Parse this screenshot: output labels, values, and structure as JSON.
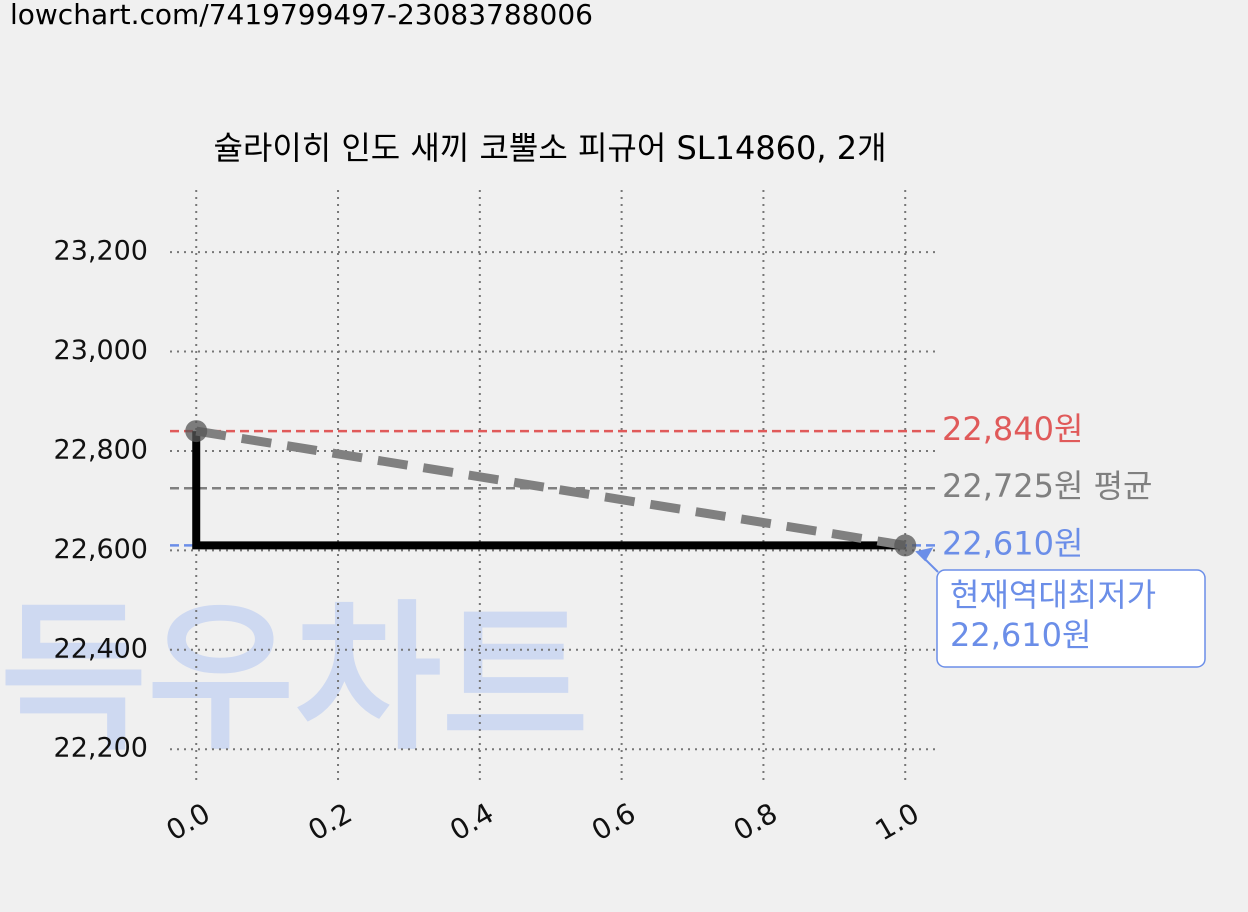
{
  "header": {
    "url": "lowchart.com/7419799497-23083788006"
  },
  "chart_data": {
    "type": "line",
    "title": "슐라이히 인도 새끼 코뿔소 피규어 SL14860, 2개",
    "watermark": "득우차트",
    "x": [
      0,
      1
    ],
    "series": [
      {
        "color": "#000000",
        "drawstyle": "steps-pre",
        "values": [
          22840,
          22610
        ]
      },
      {
        "color": "#808080",
        "dashed": true,
        "markers": true,
        "values": [
          22840,
          22610
        ]
      }
    ],
    "xlim": [
      -0.037,
      1.042
    ],
    "ylim": [
      22128,
      23325
    ],
    "xticks": [
      {
        "value": 0,
        "label": "0.0"
      },
      0.2,
      0.4,
      0.6,
      0.8,
      {
        "value": 1,
        "label": "1.0"
      }
    ],
    "yticks": [
      {
        "value": 22200,
        "label": "22,200"
      },
      {
        "value": 22400,
        "label": "22,400"
      },
      {
        "value": 22600,
        "label": "22,600"
      },
      {
        "value": 22800,
        "label": "22,800"
      },
      {
        "value": 23000,
        "label": "23,000"
      },
      {
        "value": 23200,
        "label": "23,200"
      }
    ],
    "grid": true,
    "reference_lines": [
      {
        "value": 22840,
        "label": "22,840원",
        "color": "#e05a5a"
      },
      {
        "value": 22725,
        "label": "22,725원 평균",
        "color": "#808080"
      },
      {
        "value": 22610,
        "label": "22,610원",
        "color": "#6b8ee8"
      }
    ],
    "annotation": {
      "x": 1,
      "value": 22610,
      "lines": [
        "현재역대최저가",
        "22,610원"
      ],
      "color": "#6b8ee8"
    }
  }
}
